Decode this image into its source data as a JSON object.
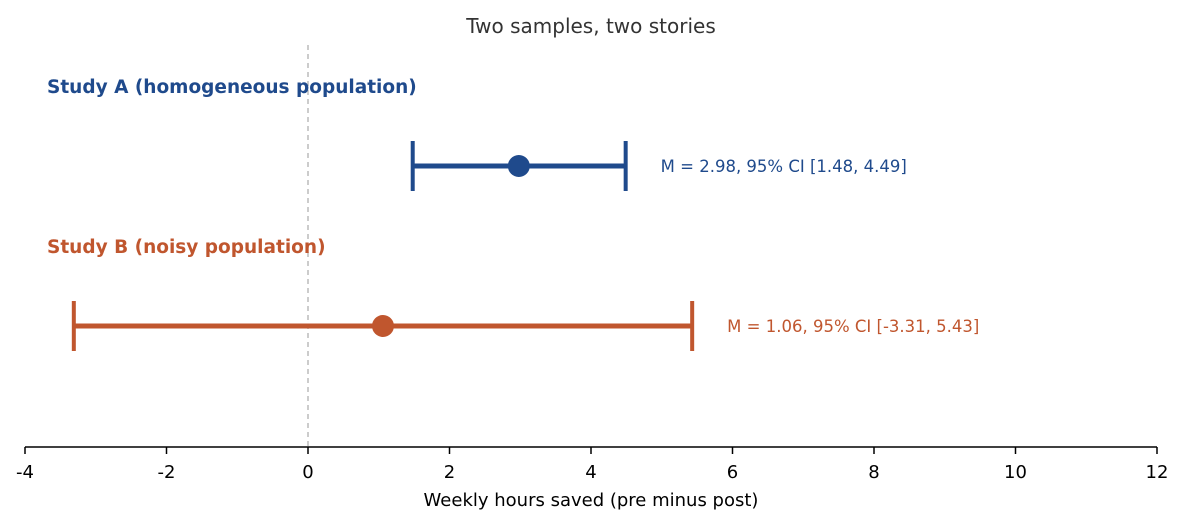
{
  "chart_data": {
    "type": "errorbar",
    "title": "Two samples, two stories",
    "xlabel": "Weekly hours saved (pre minus post)",
    "ylabel": "",
    "xlim": [
      -4,
      12
    ],
    "xticks": [
      -4,
      -2,
      0,
      2,
      4,
      6,
      8,
      10,
      12
    ],
    "xtick_labels": [
      "-4",
      "-2",
      "0",
      "2",
      "4",
      "6",
      "8",
      "10",
      "12"
    ],
    "reference_line": {
      "x": 0,
      "style": "dashed",
      "color": "#bbbbbb"
    },
    "grid": false,
    "series": [
      {
        "name": "Study A (homogeneous population)",
        "mean": 2.98,
        "ci_low": 1.48,
        "ci_high": 4.49,
        "annotation": "M = 2.98, 95% CI [1.48, 4.49]",
        "color": "#1f4a8c"
      },
      {
        "name": "Study B (noisy population)",
        "mean": 1.06,
        "ci_low": -3.31,
        "ci_high": 5.43,
        "annotation": "M = 1.06, 95% CI [-3.31, 5.43]",
        "color": "#c0562e"
      }
    ]
  }
}
